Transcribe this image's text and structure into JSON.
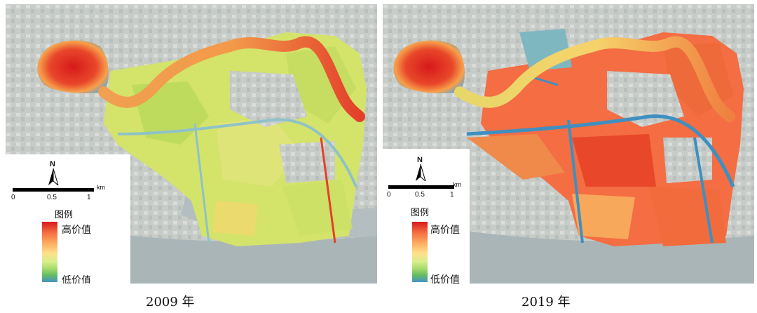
{
  "maps": [
    {
      "id": "2009",
      "caption": "2009 年",
      "scale": {
        "ticks": [
          "0",
          "0.5",
          "1"
        ],
        "unit": "km"
      },
      "north_label": "N",
      "legend": {
        "title": "图例",
        "high": "高价值",
        "low": "低价值"
      },
      "dominant_value": "medium (yellow-green)"
    },
    {
      "id": "2019",
      "caption": "2019 年",
      "scale": {
        "ticks": [
          "0",
          "0.5",
          "1"
        ],
        "unit": "km"
      },
      "north_label": "N",
      "legend": {
        "title": "图例",
        "high": "高价值",
        "low": "低价值"
      },
      "dominant_value": "high (orange-red)"
    }
  ],
  "colors": {
    "high": "#d7191c",
    "mid_high": "#fdae61",
    "mid": "#fee08b",
    "mid_low": "#a6d96a",
    "low": "#4393c3",
    "basemap": "#c9cec9",
    "river": "#aab5b8"
  }
}
